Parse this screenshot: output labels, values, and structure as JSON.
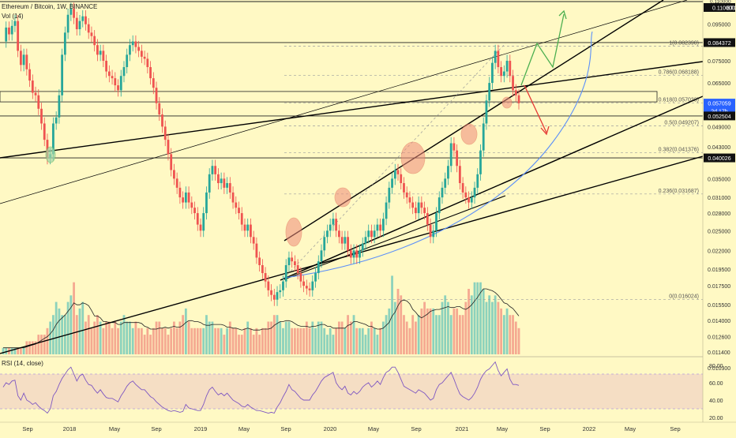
{
  "header": {
    "symbol_line": "Ethereum / Bitcoin, 1W, BINANCE",
    "volume_label": "Vol (14)"
  },
  "price_axis": {
    "ticks": [
      "0.095000",
      "0.075000",
      "0.065000",
      "0.049000",
      "0.043000",
      "0.035000",
      "0.031000",
      "0.028000",
      "0.025000",
      "0.022000",
      "0.019500",
      "0.017500",
      "0.015500",
      "0.014000",
      "0.012600",
      "0.011400",
      "0.010300"
    ],
    "price_tags": [
      {
        "value": "0.084372",
        "bg": "#111111",
        "fg": "#ffffff"
      },
      {
        "value": "0.057059",
        "bg": "#2962ff",
        "fg": "#ffffff"
      },
      {
        "value": "2d 17h",
        "bg": "#2962ff",
        "fg": "#ffffff"
      },
      {
        "value": "0.052504",
        "bg": "#111111",
        "fg": "#ffffff"
      },
      {
        "value": "0.040026",
        "bg": "#111111",
        "fg": "#ffffff"
      }
    ],
    "top_tags": [
      "0.110000",
      "BTC"
    ]
  },
  "fibonacci": [
    {
      "label": "1(0.082390)"
    },
    {
      "label": "0.786(0.068188)"
    },
    {
      "label": "0.618(0.057038)"
    },
    {
      "label": "0.5(0.049207)"
    },
    {
      "label": "0.382(0.041376)"
    },
    {
      "label": "0.236(0.031687)"
    },
    {
      "label": "0(0.016024)"
    }
  ],
  "rsi": {
    "label": "RSI (14, close)",
    "ticks": [
      "80.00",
      "60.00",
      "40.00",
      "20.00"
    ]
  },
  "time_axis": {
    "labels": [
      "Sep",
      "2018",
      "May",
      "Sep",
      "2019",
      "May",
      "Sep",
      "2020",
      "May",
      "Sep",
      "2021",
      "May",
      "Sep",
      "2022",
      "May",
      "Sep"
    ]
  },
  "colors": {
    "background": "#fff9c4",
    "up": "#26a69a",
    "down": "#ef5350",
    "trendline": "#000000",
    "curve": "#5b8ff9",
    "arrow_up": "#4caf50",
    "arrow_down": "#e53935",
    "rsi_line": "#7e57c2",
    "highlight": "#f08c7a"
  },
  "chart_data": {
    "type": "candlestick",
    "series": [
      {
        "name": "price",
        "values": [
          0.085,
          0.093,
          0.089,
          0.094,
          0.097,
          0.08,
          0.073,
          0.078,
          0.071,
          0.066,
          0.061,
          0.06,
          0.055,
          0.05,
          0.045,
          0.04,
          0.041,
          0.05,
          0.052,
          0.06,
          0.078,
          0.09,
          0.101,
          0.105,
          0.099,
          0.092,
          0.097,
          0.1,
          0.095,
          0.09,
          0.088,
          0.083,
          0.078,
          0.08,
          0.075,
          0.07,
          0.068,
          0.067,
          0.064,
          0.062,
          0.068,
          0.072,
          0.078,
          0.083,
          0.085,
          0.082,
          0.08,
          0.077,
          0.076,
          0.072,
          0.067,
          0.063,
          0.057,
          0.053,
          0.049,
          0.045,
          0.041,
          0.037,
          0.035,
          0.033,
          0.031,
          0.03,
          0.032,
          0.03,
          0.029,
          0.028,
          0.026,
          0.025,
          0.028,
          0.032,
          0.036,
          0.038,
          0.036,
          0.034,
          0.035,
          0.033,
          0.034,
          0.032,
          0.03,
          0.029,
          0.028,
          0.026,
          0.025,
          0.026,
          0.024,
          0.023,
          0.021,
          0.02,
          0.019,
          0.018,
          0.017,
          0.0165,
          0.016,
          0.0168,
          0.017,
          0.018,
          0.02,
          0.021,
          0.0205,
          0.02,
          0.019,
          0.018,
          0.0175,
          0.0172,
          0.017,
          0.018,
          0.019,
          0.0205,
          0.022,
          0.024,
          0.025,
          0.026,
          0.027,
          0.025,
          0.024,
          0.023,
          0.024,
          0.022,
          0.021,
          0.022,
          0.021,
          0.022,
          0.023,
          0.024,
          0.025,
          0.024,
          0.025,
          0.026,
          0.025,
          0.027,
          0.03,
          0.033,
          0.035,
          0.037,
          0.036,
          0.034,
          0.032,
          0.031,
          0.03,
          0.029,
          0.028,
          0.03,
          0.029,
          0.028,
          0.026,
          0.024,
          0.025,
          0.028,
          0.031,
          0.033,
          0.035,
          0.038,
          0.044,
          0.042,
          0.038,
          0.034,
          0.032,
          0.031,
          0.03,
          0.031,
          0.033,
          0.036,
          0.042,
          0.05,
          0.058,
          0.065,
          0.074,
          0.08,
          0.072,
          0.068,
          0.07,
          0.075,
          0.068,
          0.062,
          0.06,
          0.057
        ]
      },
      {
        "name": "volume",
        "values": [
          1,
          1,
          1,
          1,
          1,
          1,
          1,
          1,
          2,
          2,
          2,
          2,
          3,
          3,
          3,
          4,
          5,
          6,
          8,
          7,
          6,
          6,
          8,
          9,
          11,
          6,
          7,
          8,
          5,
          6,
          4,
          5,
          6,
          5,
          4,
          5,
          5,
          4,
          5,
          4,
          5,
          6,
          5,
          5,
          4,
          5,
          4,
          4,
          3,
          4,
          3,
          4,
          5,
          5,
          4,
          4,
          3,
          4,
          5,
          4,
          5,
          6,
          7,
          5,
          4,
          4,
          4,
          4,
          4,
          6,
          5,
          5,
          4,
          4,
          4,
          3,
          4,
          5,
          4,
          4,
          3,
          3,
          4,
          5,
          4,
          3,
          4,
          3,
          4,
          4,
          5,
          5,
          6,
          6,
          5,
          4,
          5,
          5,
          4,
          4,
          4,
          4,
          4,
          5,
          4,
          5,
          4,
          5,
          5,
          4,
          3,
          4,
          3,
          4,
          5,
          5,
          4,
          6,
          5,
          6,
          4,
          4,
          4,
          3,
          4,
          5,
          4,
          3,
          4,
          5,
          6,
          7,
          12,
          8,
          10,
          9,
          6,
          5,
          4,
          6,
          5,
          6,
          7,
          8,
          7,
          7,
          7,
          6,
          6,
          8,
          9,
          8,
          6,
          7,
          7,
          6,
          6,
          8,
          10,
          9,
          11,
          11,
          11,
          10,
          8,
          9,
          8,
          9,
          8,
          7,
          6,
          7,
          6,
          6,
          5,
          4
        ]
      },
      {
        "name": "RSI (14, close)",
        "values": [
          55,
          60,
          58,
          62,
          63,
          45,
          40,
          48,
          40,
          38,
          35,
          37,
          33,
          30,
          28,
          25,
          30,
          45,
          50,
          58,
          65,
          70,
          75,
          78,
          70,
          62,
          68,
          70,
          63,
          58,
          57,
          52,
          48,
          52,
          47,
          43,
          42,
          42,
          40,
          38,
          45,
          50,
          56,
          60,
          62,
          58,
          55,
          52,
          52,
          48,
          44,
          42,
          38,
          35,
          32,
          30,
          28,
          27,
          28,
          27,
          26,
          27,
          35,
          31,
          30,
          29,
          28,
          28,
          35,
          45,
          52,
          55,
          50,
          46,
          48,
          45,
          48,
          44,
          40,
          38,
          36,
          33,
          32,
          35,
          32,
          30,
          28,
          28,
          27,
          26,
          25,
          26,
          25,
          32,
          37,
          44,
          50,
          58,
          52,
          50,
          46,
          42,
          40,
          40,
          40,
          46,
          50,
          56,
          62,
          66,
          68,
          70,
          72,
          60,
          55,
          52,
          56,
          48,
          46,
          50,
          47,
          50,
          55,
          58,
          60,
          55,
          58,
          62,
          58,
          66,
          72,
          74,
          78,
          78,
          72,
          64,
          56,
          54,
          52,
          50,
          48,
          52,
          50,
          48,
          44,
          40,
          42,
          52,
          58,
          60,
          64,
          68,
          72,
          64,
          55,
          47,
          44,
          42,
          40,
          43,
          48,
          55,
          64,
          70,
          74,
          76,
          80,
          84,
          74,
          68,
          72,
          76,
          64,
          58,
          58,
          57
        ]
      }
    ],
    "fib_levels": [
      0.08239,
      0.068188,
      0.057038,
      0.049207,
      0.041376,
      0.031687,
      0.016024
    ],
    "horizontal_levels": [
      0.11,
      0.084372,
      0.052504,
      0.040026
    ],
    "current_price": 0.057059
  }
}
